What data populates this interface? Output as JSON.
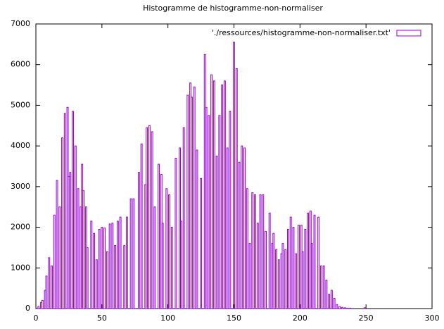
{
  "chart_data": {
    "type": "bar",
    "title": "Histogramme de histogramme-non-normaliser",
    "legend": "'./ressources/histogramme-non-normaliser.txt'",
    "legend_position": "top-right",
    "color": "#9400d3",
    "grid": false,
    "x": [
      2,
      4,
      5,
      7,
      8,
      10,
      12,
      14,
      16,
      18,
      20,
      22,
      24,
      25,
      26,
      28,
      30,
      32,
      34,
      35,
      36,
      38,
      39,
      42,
      44,
      46,
      48,
      50,
      52,
      54,
      56,
      58,
      60,
      62,
      64,
      67,
      69,
      72,
      74,
      78,
      80,
      83,
      84,
      86,
      88,
      90,
      93,
      95,
      96,
      99,
      101,
      103,
      106,
      109,
      110,
      112,
      115,
      117,
      118,
      120,
      122,
      125,
      128,
      129,
      131,
      133,
      135,
      137,
      139,
      141,
      143,
      145,
      147,
      150,
      152,
      154,
      156,
      158,
      160,
      162,
      164,
      166,
      168,
      170,
      172,
      174,
      177,
      179,
      180,
      182,
      184,
      186,
      187,
      189,
      191,
      193,
      195,
      197,
      199,
      201,
      202,
      204,
      206,
      208,
      209,
      211,
      214,
      216,
      218,
      220,
      222,
      224,
      226,
      228,
      230,
      232,
      234,
      236,
      238,
      249
    ],
    "values": [
      50,
      150,
      200,
      450,
      800,
      1250,
      1050,
      2300,
      3150,
      2500,
      4200,
      4800,
      4950,
      3250,
      3350,
      4850,
      4000,
      2950,
      2500,
      3550,
      2900,
      2500,
      1500,
      2150,
      1850,
      1200,
      1950,
      2000,
      1980,
      1400,
      2080,
      2100,
      1550,
      2150,
      2250,
      1550,
      2250,
      2700,
      2700,
      3350,
      4050,
      3050,
      4450,
      4500,
      4350,
      2500,
      3550,
      3300,
      2100,
      2950,
      2800,
      2000,
      3700,
      3950,
      2150,
      4450,
      5250,
      5550,
      5200,
      5450,
      3900,
      3200,
      6250,
      4950,
      4750,
      5750,
      5600,
      3750,
      4750,
      5500,
      5600,
      3950,
      4850,
      6550,
      5900,
      3600,
      4000,
      3950,
      2950,
      1600,
      2850,
      2800,
      2100,
      2800,
      2800,
      1900,
      2350,
      1600,
      1850,
      1450,
      1200,
      1350,
      1600,
      1450,
      1950,
      2250,
      2000,
      1350,
      2050,
      2050,
      1400,
      1950,
      2350,
      2400,
      1600,
      2300,
      2250,
      1050,
      1050,
      700,
      350,
      450,
      250,
      100,
      50,
      30,
      20,
      10,
      10,
      20
    ],
    "xlim": [
      0,
      300
    ],
    "xticks": [
      0,
      50,
      100,
      150,
      200,
      250,
      300
    ],
    "ylim": [
      0,
      7000
    ],
    "yticks": [
      0,
      1000,
      2000,
      3000,
      4000,
      5000,
      6000,
      7000
    ]
  }
}
